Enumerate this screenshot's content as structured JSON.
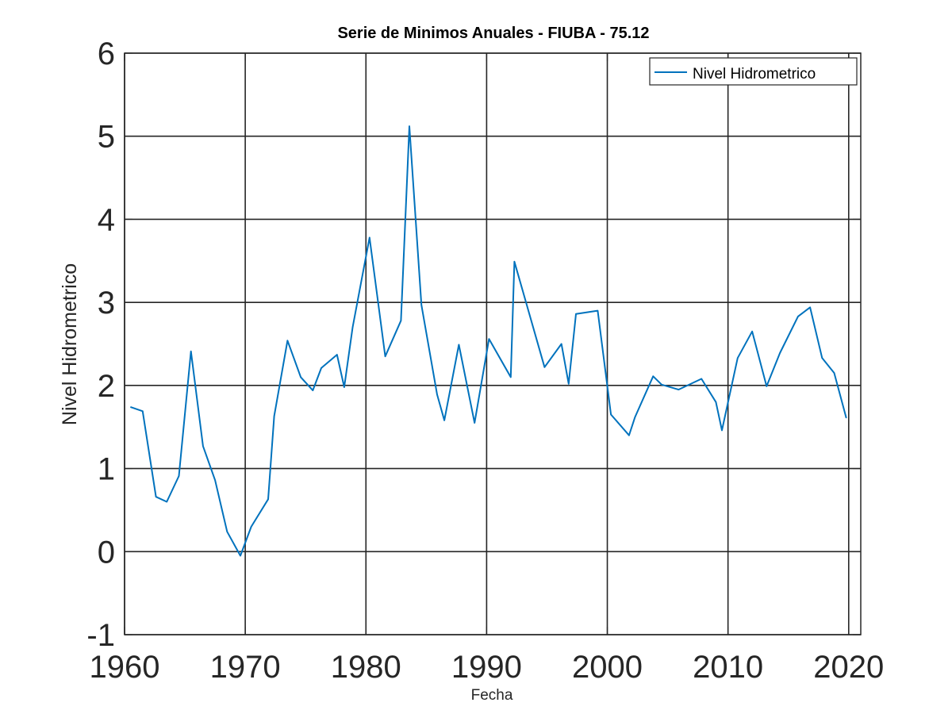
{
  "colors": {
    "series": "#0072BD",
    "grid": "#262626",
    "axes": "#262626",
    "background": "#ffffff"
  },
  "chart_data": {
    "type": "line",
    "title": "Serie de Minimos Anuales - FIUBA - 75.12",
    "xlabel": "Fecha",
    "ylabel": "Nivel Hidrometrico",
    "xlim": [
      1960,
      2021
    ],
    "ylim": [
      -1,
      6
    ],
    "xticks": [
      1960,
      1970,
      1980,
      1990,
      2000,
      2010,
      2020
    ],
    "yticks": [
      -1,
      0,
      1,
      2,
      3,
      4,
      5,
      6
    ],
    "xtick_labels": [
      "1960",
      "1970",
      "1980",
      "1990",
      "2000",
      "2010",
      "2020"
    ],
    "ytick_labels": [
      "-1",
      "0",
      "1",
      "2",
      "3",
      "4",
      "5",
      "6"
    ],
    "grid": true,
    "legend_position": "top-right",
    "series": [
      {
        "name": "Nivel Hidrometrico",
        "x": [
          1960.5,
          1961.5,
          1962.6,
          1963.5,
          1964.5,
          1965.5,
          1966.5,
          1967.5,
          1968.5,
          1969.6,
          1970.5,
          1971.9,
          1972.4,
          1973.5,
          1974.6,
          1975.6,
          1976.3,
          1977.6,
          1978.2,
          1978.9,
          1980.3,
          1981.6,
          1982.9,
          1983.6,
          1984.6,
          1985.9,
          1986.5,
          1987.7,
          1989.0,
          1990.2,
          1992.0,
          1992.3,
          1994.8,
          1996.2,
          1996.8,
          1997.4,
          1999.2,
          2000.3,
          2001.8,
          2002.3,
          2003.8,
          2004.5,
          2005.9,
          2007.8,
          2009.0,
          2009.5,
          2010.8,
          2012.0,
          2013.2,
          2014.3,
          2015.8,
          2016.8,
          2017.8,
          2018.8,
          2019.8
        ],
        "y": [
          1.74,
          1.69,
          0.66,
          0.6,
          0.91,
          2.41,
          1.27,
          0.86,
          0.24,
          -0.05,
          0.3,
          0.63,
          1.63,
          2.54,
          2.1,
          1.94,
          2.21,
          2.37,
          1.98,
          2.7,
          3.78,
          2.35,
          2.78,
          5.12,
          2.97,
          1.89,
          1.58,
          2.49,
          1.55,
          2.56,
          2.1,
          3.49,
          2.22,
          2.5,
          2.02,
          2.86,
          2.9,
          1.65,
          1.4,
          1.62,
          2.11,
          2.01,
          1.95,
          2.08,
          1.8,
          1.46,
          2.33,
          2.65,
          1.99,
          2.39,
          2.83,
          2.94,
          2.33,
          2.15,
          1.61
        ]
      }
    ]
  }
}
